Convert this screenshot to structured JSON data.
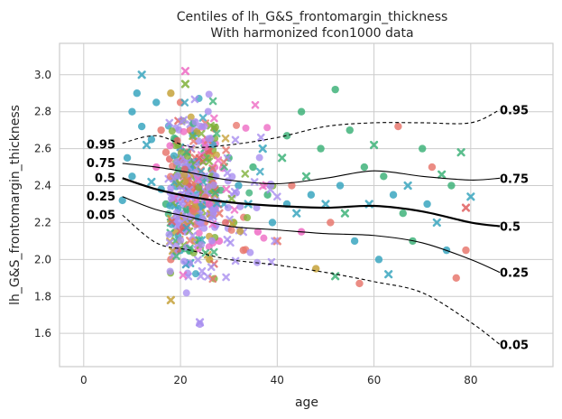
{
  "chart_data": {
    "type": "scatter",
    "title": "Centiles of lh_G&S_frontomargin_thickness",
    "subtitle": "With harmonized fcon1000 data",
    "xlabel": "age",
    "ylabel": "lh_G&S_frontomargin_thickness",
    "xlim": [
      -5,
      97
    ],
    "ylim": [
      1.42,
      3.17
    ],
    "xticks": [
      0,
      20,
      40,
      60,
      80
    ],
    "yticks": [
      1.6,
      1.8,
      2.0,
      2.2,
      2.4,
      2.6,
      2.8,
      3.0
    ],
    "grid": true,
    "marker_colors": [
      "#e8786e",
      "#c6a23a",
      "#3fb37a",
      "#3aa6bf",
      "#a98ff0",
      "#ee6bc4",
      "#7fb13a",
      "#e06060"
    ],
    "centiles": [
      {
        "label": "0.05",
        "x": [
          8,
          15,
          22,
          30,
          40,
          50,
          60,
          70,
          80,
          86
        ],
        "y": [
          2.24,
          2.09,
          2.05,
          2.0,
          1.97,
          1.93,
          1.88,
          1.82,
          1.66,
          1.54
        ]
      },
      {
        "label": "0.25",
        "x": [
          8,
          15,
          22,
          30,
          40,
          50,
          60,
          70,
          80,
          86
        ],
        "y": [
          2.34,
          2.27,
          2.23,
          2.18,
          2.16,
          2.14,
          2.13,
          2.09,
          2.0,
          1.93
        ]
      },
      {
        "label": "0.5",
        "x": [
          8,
          15,
          22,
          30,
          40,
          50,
          60,
          70,
          80,
          86
        ],
        "y": [
          2.44,
          2.38,
          2.34,
          2.31,
          2.29,
          2.28,
          2.29,
          2.26,
          2.2,
          2.18
        ]
      },
      {
        "label": "0.75",
        "x": [
          8,
          15,
          22,
          30,
          40,
          50,
          60,
          70,
          80,
          86
        ],
        "y": [
          2.52,
          2.5,
          2.47,
          2.43,
          2.41,
          2.44,
          2.48,
          2.45,
          2.43,
          2.44
        ]
      },
      {
        "label": "0.95",
        "x": [
          8,
          15,
          22,
          30,
          40,
          50,
          60,
          70,
          80,
          86
        ],
        "y": [
          2.63,
          2.67,
          2.61,
          2.62,
          2.66,
          2.72,
          2.74,
          2.74,
          2.74,
          2.81
        ]
      }
    ],
    "points": [
      {
        "x": 12,
        "y": 2.72,
        "c": 3,
        "m": "o"
      },
      {
        "x": 10,
        "y": 2.8,
        "c": 3,
        "m": "o"
      },
      {
        "x": 14,
        "y": 2.65,
        "c": 3,
        "m": "o"
      },
      {
        "x": 11,
        "y": 2.9,
        "c": 3,
        "m": "o"
      },
      {
        "x": 15,
        "y": 2.85,
        "c": 3,
        "m": "o"
      },
      {
        "x": 13,
        "y": 2.62,
        "c": 3,
        "m": "x"
      },
      {
        "x": 12,
        "y": 3.0,
        "c": 3,
        "m": "x"
      },
      {
        "x": 9,
        "y": 2.55,
        "c": 3,
        "m": "o"
      },
      {
        "x": 10,
        "y": 2.45,
        "c": 3,
        "m": "o"
      },
      {
        "x": 8,
        "y": 2.32,
        "c": 3,
        "m": "o"
      },
      {
        "x": 14,
        "y": 2.42,
        "c": 3,
        "m": "x"
      },
      {
        "x": 16,
        "y": 2.38,
        "c": 3,
        "m": "o"
      },
      {
        "x": 17,
        "y": 2.58,
        "c": 0,
        "m": "o"
      },
      {
        "x": 16,
        "y": 2.7,
        "c": 0,
        "m": "o"
      },
      {
        "x": 15,
        "y": 2.5,
        "c": 5,
        "m": "o"
      },
      {
        "x": 17,
        "y": 2.3,
        "c": 2,
        "m": "o"
      },
      {
        "x": 18,
        "y": 2.9,
        "c": 1,
        "m": "o"
      },
      {
        "x": 18,
        "y": 2.2,
        "c": 2,
        "m": "x"
      },
      {
        "x": 18,
        "y": 1.78,
        "c": 1,
        "m": "x"
      },
      {
        "x": 18,
        "y": 2.0,
        "c": 0,
        "m": "o"
      },
      {
        "x": 19,
        "y": 2.45,
        "c": 6,
        "m": "o"
      },
      {
        "x": 19,
        "y": 2.65,
        "c": 2,
        "m": "o"
      },
      {
        "x": 19,
        "y": 2.15,
        "c": 1,
        "m": "o"
      },
      {
        "x": 19,
        "y": 2.1,
        "c": 2,
        "m": "x"
      },
      {
        "x": 20,
        "y": 2.55,
        "c": 4,
        "m": "x"
      },
      {
        "x": 20,
        "y": 2.35,
        "c": 4,
        "m": "o"
      },
      {
        "x": 20,
        "y": 2.25,
        "c": 4,
        "m": "x"
      },
      {
        "x": 20,
        "y": 2.6,
        "c": 5,
        "m": "o"
      },
      {
        "x": 20,
        "y": 2.05,
        "c": 3,
        "m": "o"
      },
      {
        "x": 20,
        "y": 2.85,
        "c": 0,
        "m": "o"
      },
      {
        "x": 21,
        "y": 3.02,
        "c": 5,
        "m": "x"
      },
      {
        "x": 21,
        "y": 2.95,
        "c": 6,
        "m": "x"
      },
      {
        "x": 21,
        "y": 2.4,
        "c": 4,
        "m": "o"
      },
      {
        "x": 21,
        "y": 2.3,
        "c": 4,
        "m": "x"
      },
      {
        "x": 21,
        "y": 2.15,
        "c": 4,
        "m": "o"
      },
      {
        "x": 21,
        "y": 2.5,
        "c": 2,
        "m": "o"
      },
      {
        "x": 22,
        "y": 2.2,
        "c": 4,
        "m": "x"
      },
      {
        "x": 22,
        "y": 2.45,
        "c": 4,
        "m": "o"
      },
      {
        "x": 22,
        "y": 2.35,
        "c": 5,
        "m": "x"
      },
      {
        "x": 22,
        "y": 2.05,
        "c": 2,
        "m": "o"
      },
      {
        "x": 22,
        "y": 2.7,
        "c": 0,
        "m": "o"
      },
      {
        "x": 22,
        "y": 1.98,
        "c": 3,
        "m": "x"
      },
      {
        "x": 23,
        "y": 2.25,
        "c": 4,
        "m": "o"
      },
      {
        "x": 23,
        "y": 2.55,
        "c": 0,
        "m": "x"
      },
      {
        "x": 23,
        "y": 2.1,
        "c": 1,
        "m": "o"
      },
      {
        "x": 24,
        "y": 2.4,
        "c": 5,
        "m": "o"
      },
      {
        "x": 24,
        "y": 2.3,
        "c": 6,
        "m": "o"
      },
      {
        "x": 24,
        "y": 1.65,
        "c": 4,
        "m": "o"
      },
      {
        "x": 24,
        "y": 1.66,
        "c": 4,
        "m": "x"
      },
      {
        "x": 25,
        "y": 2.2,
        "c": 0,
        "m": "o"
      },
      {
        "x": 25,
        "y": 2.6,
        "c": 2,
        "m": "x"
      },
      {
        "x": 26,
        "y": 2.35,
        "c": 5,
        "m": "x"
      },
      {
        "x": 26,
        "y": 2.0,
        "c": 1,
        "m": "o"
      },
      {
        "x": 27,
        "y": 2.45,
        "c": 3,
        "m": "o"
      },
      {
        "x": 28,
        "y": 2.25,
        "c": 0,
        "m": "x"
      },
      {
        "x": 28,
        "y": 2.1,
        "c": 5,
        "m": "o"
      },
      {
        "x": 29,
        "y": 2.3,
        "c": 3,
        "m": "x"
      },
      {
        "x": 30,
        "y": 2.55,
        "c": 2,
        "m": "o"
      },
      {
        "x": 31,
        "y": 2.2,
        "c": 6,
        "m": "o"
      },
      {
        "x": 32,
        "y": 2.4,
        "c": 3,
        "m": "o"
      },
      {
        "x": 33,
        "y": 2.05,
        "c": 0,
        "m": "o"
      },
      {
        "x": 34,
        "y": 2.3,
        "c": 3,
        "m": "x"
      },
      {
        "x": 35,
        "y": 2.5,
        "c": 2,
        "m": "o"
      },
      {
        "x": 36,
        "y": 2.15,
        "c": 5,
        "m": "o"
      },
      {
        "x": 37,
        "y": 2.6,
        "c": 3,
        "m": "x"
      },
      {
        "x": 38,
        "y": 2.35,
        "c": 2,
        "m": "o"
      },
      {
        "x": 39,
        "y": 2.2,
        "c": 3,
        "m": "o"
      },
      {
        "x": 40,
        "y": 2.1,
        "c": 0,
        "m": "x"
      },
      {
        "x": 41,
        "y": 2.55,
        "c": 2,
        "m": "x"
      },
      {
        "x": 42,
        "y": 2.67,
        "c": 2,
        "m": "o"
      },
      {
        "x": 42,
        "y": 2.3,
        "c": 3,
        "m": "o"
      },
      {
        "x": 43,
        "y": 2.4,
        "c": 0,
        "m": "o"
      },
      {
        "x": 44,
        "y": 2.25,
        "c": 3,
        "m": "x"
      },
      {
        "x": 45,
        "y": 2.8,
        "c": 2,
        "m": "o"
      },
      {
        "x": 45,
        "y": 2.15,
        "c": 5,
        "m": "o"
      },
      {
        "x": 46,
        "y": 2.45,
        "c": 2,
        "m": "x"
      },
      {
        "x": 47,
        "y": 2.35,
        "c": 3,
        "m": "o"
      },
      {
        "x": 48,
        "y": 1.95,
        "c": 1,
        "m": "o"
      },
      {
        "x": 49,
        "y": 2.6,
        "c": 2,
        "m": "o"
      },
      {
        "x": 50,
        "y": 2.3,
        "c": 3,
        "m": "x"
      },
      {
        "x": 51,
        "y": 2.2,
        "c": 0,
        "m": "o"
      },
      {
        "x": 52,
        "y": 2.92,
        "c": 2,
        "m": "o"
      },
      {
        "x": 52,
        "y": 1.91,
        "c": 2,
        "m": "x"
      },
      {
        "x": 53,
        "y": 2.4,
        "c": 3,
        "m": "o"
      },
      {
        "x": 54,
        "y": 2.25,
        "c": 2,
        "m": "x"
      },
      {
        "x": 55,
        "y": 2.7,
        "c": 2,
        "m": "o"
      },
      {
        "x": 56,
        "y": 2.1,
        "c": 3,
        "m": "o"
      },
      {
        "x": 57,
        "y": 1.87,
        "c": 0,
        "m": "o"
      },
      {
        "x": 58,
        "y": 2.5,
        "c": 2,
        "m": "o"
      },
      {
        "x": 59,
        "y": 2.3,
        "c": 3,
        "m": "x"
      },
      {
        "x": 60,
        "y": 2.62,
        "c": 2,
        "m": "x"
      },
      {
        "x": 61,
        "y": 2.0,
        "c": 3,
        "m": "o"
      },
      {
        "x": 62,
        "y": 2.45,
        "c": 2,
        "m": "o"
      },
      {
        "x": 63,
        "y": 1.92,
        "c": 3,
        "m": "x"
      },
      {
        "x": 64,
        "y": 2.35,
        "c": 3,
        "m": "o"
      },
      {
        "x": 65,
        "y": 2.72,
        "c": 0,
        "m": "o"
      },
      {
        "x": 66,
        "y": 2.25,
        "c": 2,
        "m": "o"
      },
      {
        "x": 67,
        "y": 2.4,
        "c": 3,
        "m": "x"
      },
      {
        "x": 68,
        "y": 2.1,
        "c": 2,
        "m": "o"
      },
      {
        "x": 70,
        "y": 2.6,
        "c": 2,
        "m": "o"
      },
      {
        "x": 71,
        "y": 2.3,
        "c": 3,
        "m": "o"
      },
      {
        "x": 72,
        "y": 2.5,
        "c": 0,
        "m": "o"
      },
      {
        "x": 73,
        "y": 2.2,
        "c": 3,
        "m": "x"
      },
      {
        "x": 75,
        "y": 2.05,
        "c": 3,
        "m": "o"
      },
      {
        "x": 76,
        "y": 2.4,
        "c": 2,
        "m": "o"
      },
      {
        "x": 77,
        "y": 1.9,
        "c": 0,
        "m": "o"
      },
      {
        "x": 78,
        "y": 2.58,
        "c": 2,
        "m": "x"
      },
      {
        "x": 79,
        "y": 2.28,
        "c": 7,
        "m": "x"
      },
      {
        "x": 79,
        "y": 2.05,
        "c": 0,
        "m": "o"
      },
      {
        "x": 80,
        "y": 2.34,
        "c": 3,
        "m": "x"
      },
      {
        "x": 74,
        "y": 2.46,
        "c": 2,
        "m": "x"
      }
    ]
  }
}
